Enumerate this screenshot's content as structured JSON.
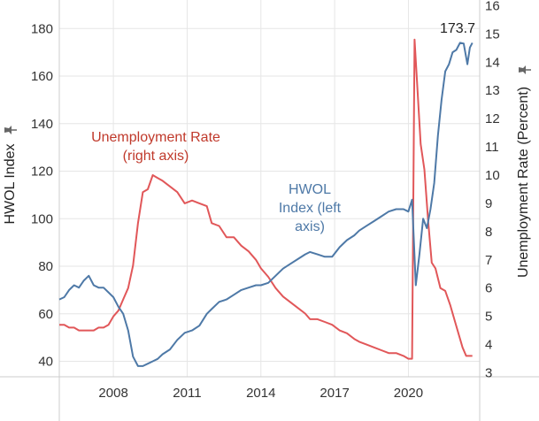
{
  "chart_data": {
    "type": "line",
    "x_ticks": [
      2008,
      2011,
      2014,
      2017,
      2020
    ],
    "x_range": [
      2005.8,
      2022.9
    ],
    "left_axis": {
      "label": "HWOL Index",
      "ticks": [
        40,
        60,
        80,
        100,
        120,
        140,
        160,
        180
      ],
      "range": [
        33.5,
        192
      ]
    },
    "right_axis": {
      "label": "Unemployment Rate (Percent)",
      "ticks": [
        3,
        4,
        5,
        6,
        7,
        8,
        9,
        10,
        11,
        12,
        13,
        14,
        15,
        16
      ],
      "range": [
        2.86,
        16.2
      ]
    },
    "annotations": {
      "unemployment_label": [
        "Unemployment Rate",
        "(right axis)"
      ],
      "hwol_label": [
        "HWOL",
        "Index (left",
        "axis)"
      ],
      "peak_value": "173.7"
    },
    "colors": {
      "hwol": "#4e79a7",
      "unemployment": "#e15759",
      "unemployment_text": "#c0392b",
      "grid": "#e6e6e6",
      "pin": "#666666"
    },
    "series": [
      {
        "axis": "left",
        "x": [
          2005.8,
          2006.0,
          2006.2,
          2006.4,
          2006.6,
          2006.8,
          2007.0,
          2007.2,
          2007.4,
          2007.6,
          2007.8,
          2008.0,
          2008.2,
          2008.4,
          2008.6,
          2008.8,
          2009.0,
          2009.2,
          2009.4,
          2009.6,
          2009.8,
          2010.0,
          2010.3,
          2010.6,
          2010.9,
          2011.2,
          2011.5,
          2011.8,
          2012.0,
          2012.3,
          2012.6,
          2012.9,
          2013.2,
          2013.5,
          2013.8,
          2014.0,
          2014.3,
          2014.6,
          2014.9,
          2015.2,
          2015.5,
          2015.8,
          2016.0,
          2016.3,
          2016.6,
          2016.9,
          2017.2,
          2017.5,
          2017.8,
          2018.0,
          2018.3,
          2018.6,
          2018.9,
          2019.2,
          2019.5,
          2019.8,
          2020.0,
          2020.15,
          2020.3,
          2020.45,
          2020.6,
          2020.75,
          2020.9,
          2021.05,
          2021.2,
          2021.35,
          2021.5,
          2021.65,
          2021.8,
          2021.95,
          2022.1,
          2022.25,
          2022.4,
          2022.5,
          2022.6
        ],
        "values": [
          66,
          67,
          70,
          72,
          71,
          74,
          76,
          72,
          71,
          71,
          69,
          67,
          63,
          60,
          53,
          42,
          38,
          38,
          39,
          40,
          41,
          43,
          45,
          49,
          52,
          53,
          55,
          60,
          62,
          65,
          66,
          68,
          70,
          71,
          72,
          72,
          73,
          76,
          79,
          81,
          83,
          85,
          86,
          85,
          84,
          84,
          88,
          91,
          93,
          95,
          97,
          99,
          101,
          103,
          104,
          104,
          103,
          108,
          72,
          85,
          100,
          96,
          104,
          115,
          135,
          150,
          162,
          165,
          170,
          171,
          174,
          173.7,
          165,
          172,
          174
        ]
      },
      {
        "axis": "right",
        "x": [
          2005.8,
          2006.0,
          2006.2,
          2006.4,
          2006.6,
          2006.8,
          2007.0,
          2007.2,
          2007.4,
          2007.6,
          2007.8,
          2008.0,
          2008.2,
          2008.4,
          2008.6,
          2008.8,
          2009.0,
          2009.2,
          2009.4,
          2009.6,
          2009.8,
          2010.0,
          2010.3,
          2010.6,
          2010.9,
          2011.2,
          2011.5,
          2011.8,
          2012.0,
          2012.3,
          2012.6,
          2012.9,
          2013.2,
          2013.5,
          2013.8,
          2014.0,
          2014.3,
          2014.6,
          2014.9,
          2015.2,
          2015.5,
          2015.8,
          2016.0,
          2016.3,
          2016.6,
          2016.9,
          2017.2,
          2017.5,
          2017.8,
          2018.0,
          2018.3,
          2018.6,
          2018.9,
          2019.2,
          2019.5,
          2019.8,
          2020.0,
          2020.15,
          2020.25,
          2020.35,
          2020.5,
          2020.65,
          2020.8,
          2020.95,
          2021.1,
          2021.3,
          2021.5,
          2021.7,
          2021.9,
          2022.1,
          2022.2,
          2022.35,
          2022.5,
          2022.6
        ],
        "values": [
          4.7,
          4.7,
          4.6,
          4.6,
          4.5,
          4.5,
          4.5,
          4.5,
          4.6,
          4.6,
          4.7,
          5.0,
          5.2,
          5.6,
          6.0,
          6.8,
          8.3,
          9.4,
          9.5,
          10.0,
          9.9,
          9.8,
          9.6,
          9.4,
          9.0,
          9.1,
          9.0,
          8.9,
          8.3,
          8.2,
          7.8,
          7.8,
          7.5,
          7.3,
          7.0,
          6.7,
          6.4,
          6.0,
          5.7,
          5.5,
          5.3,
          5.1,
          4.9,
          4.9,
          4.8,
          4.7,
          4.5,
          4.4,
          4.2,
          4.1,
          4.0,
          3.9,
          3.8,
          3.7,
          3.7,
          3.6,
          3.5,
          3.5,
          14.8,
          13.3,
          11.1,
          10.2,
          8.4,
          6.9,
          6.7,
          6.0,
          5.9,
          5.4,
          4.8,
          4.2,
          3.9,
          3.6,
          3.6,
          3.6
        ]
      }
    ]
  }
}
